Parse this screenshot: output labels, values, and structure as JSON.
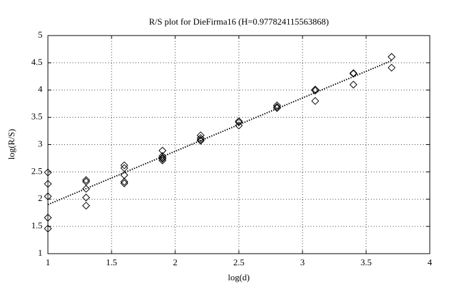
{
  "chart_data": {
    "type": "scatter",
    "title": "R/S plot for DieFirma16 (H=0.977824115563868)",
    "x_label": "log(d)",
    "y_label": "log(R/S)",
    "x": [
      1,
      1,
      1,
      1,
      1,
      1.3,
      1.3,
      1.3,
      1.3,
      1.3,
      1.6,
      1.6,
      1.6,
      1.6,
      1.6,
      1.9,
      1.9,
      1.9,
      1.9,
      1.9,
      2.2,
      2.2,
      2.2,
      2.2,
      2.5,
      2.5,
      2.5,
      2.8,
      2.8,
      2.8,
      3.1,
      3.1,
      3.1,
      3.4,
      3.4,
      3.4,
      3.7,
      3.7
    ],
    "values": [
      2.49,
      2.28,
      2.05,
      1.66,
      1.46,
      2.35,
      2.32,
      2.19,
      2.03,
      1.88,
      2.62,
      2.57,
      2.44,
      2.32,
      2.29,
      2.89,
      2.79,
      2.76,
      2.74,
      2.71,
      3.17,
      3.12,
      3.09,
      3.07,
      3.43,
      3.41,
      3.35,
      3.72,
      3.69,
      3.67,
      4.01,
      3.99,
      3.8,
      4.31,
      4.3,
      4.1,
      4.61,
      4.41
    ],
    "color": "#000000",
    "marker": "diamond",
    "fit": {
      "x": [
        1,
        3.7
      ],
      "values": [
        1.9,
        4.54
      ],
      "style": "dotted"
    },
    "xlim": [
      1,
      4
    ],
    "xticks": [
      1,
      1.5,
      2,
      2.5,
      3,
      3.5,
      4
    ],
    "ylim": [
      1,
      5
    ],
    "yticks": [
      1,
      1.5,
      2,
      2.5,
      3,
      3.5,
      4,
      4.5,
      5
    ],
    "grid": true
  }
}
